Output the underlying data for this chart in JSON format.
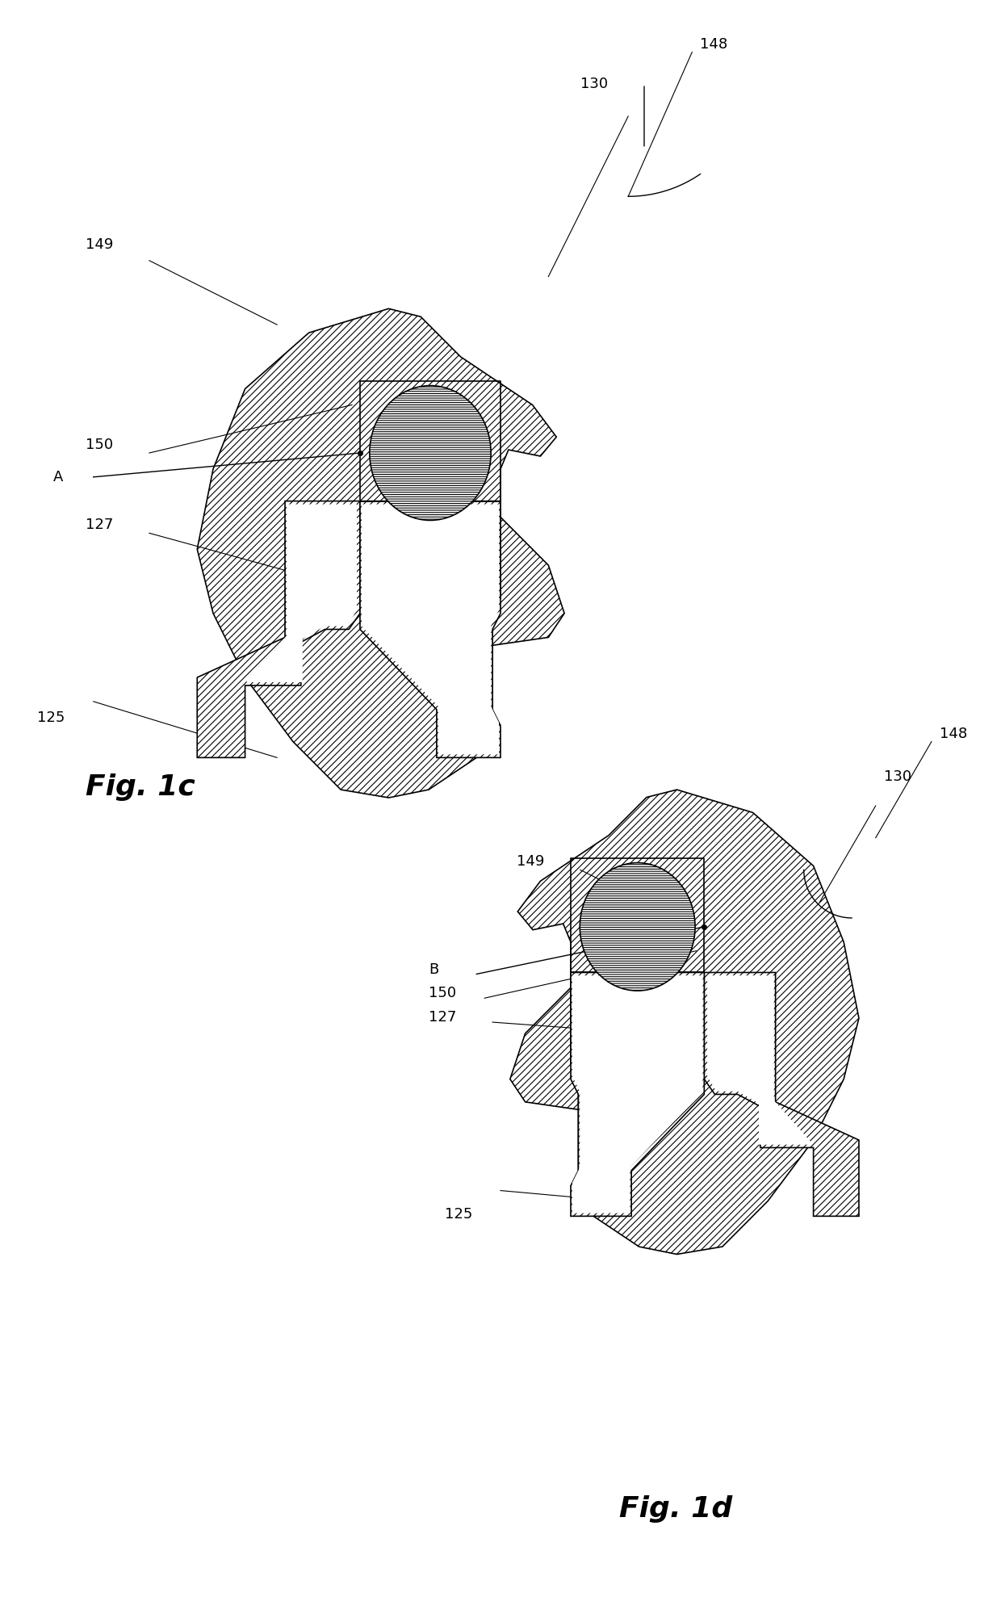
{
  "background_color": "#ffffff",
  "line_color": "#000000",
  "hatch_lw": 0.6,
  "fig_width": 12.4,
  "fig_height": 19.78,
  "fig1c_label": "Fig. 1c",
  "fig1d_label": "Fig. 1d"
}
